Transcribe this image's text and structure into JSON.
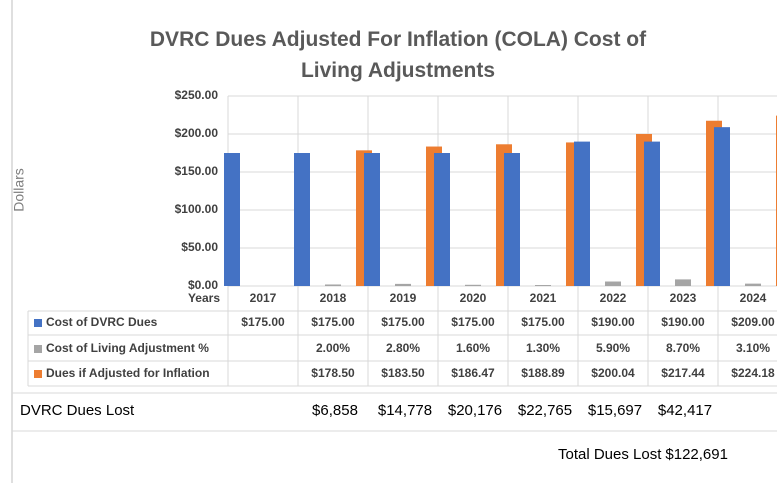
{
  "chart_data": {
    "type": "bar",
    "title": "DVRC Dues Adjusted For Inflation (COLA) Cost of Living Adjustments",
    "y_label": "Dollars",
    "x_label": "Years",
    "categories": [
      "2017",
      "2018",
      "2019",
      "2020",
      "2021",
      "2022",
      "2023",
      "2024"
    ],
    "series": [
      {
        "name": "Cost of DVRC Dues",
        "color": "#4472c4",
        "values": [
          175,
          175,
          175,
          175,
          175,
          190,
          190,
          209
        ],
        "value_labels": [
          "$175.00",
          "$175.00",
          "$175.00",
          "$175.00",
          "$175.00",
          "$190.00",
          "$190.00",
          "$209.00"
        ]
      },
      {
        "name": "Cost of Living Adjustment %",
        "color": "#a5a5a5",
        "values": [
          null,
          2.0,
          2.8,
          1.6,
          1.3,
          5.9,
          8.7,
          3.1
        ],
        "value_labels": [
          null,
          "2.00%",
          "2.80%",
          "1.60%",
          "1.30%",
          "5.90%",
          "8.70%",
          "3.10%"
        ]
      },
      {
        "name": "Dues if Adjusted for Inflation",
        "color": "#ed7d31",
        "values": [
          null,
          178.5,
          183.5,
          186.47,
          188.89,
          200.04,
          217.44,
          224.18
        ],
        "value_labels": [
          null,
          "$178.50",
          "$183.50",
          "$186.47",
          "$188.89",
          "$200.04",
          "$217.44",
          "$224.18"
        ]
      }
    ],
    "ylim": [
      0,
      250
    ],
    "yticks": [
      {
        "value": 0,
        "label": "$0.00"
      },
      {
        "value": 50,
        "label": "$50.00"
      },
      {
        "value": 100,
        "label": "$100.00"
      },
      {
        "value": 150,
        "label": "$150.00"
      },
      {
        "value": 200,
        "label": "$200.00"
      },
      {
        "value": 250,
        "label": "$250.00"
      }
    ],
    "grid": true,
    "dues_lost": {
      "label": "DVRC Dues Lost",
      "values": [
        null,
        6858,
        14778,
        20176,
        22765,
        15697,
        42417,
        null
      ],
      "value_labels": [
        null,
        "$6,858",
        "$14,778",
        "$20,176",
        "$22,765",
        "$15,697",
        "$42,417",
        null
      ]
    },
    "total": {
      "label": "Total Dues Lost",
      "value": 122691,
      "value_label": "$122,691"
    }
  }
}
